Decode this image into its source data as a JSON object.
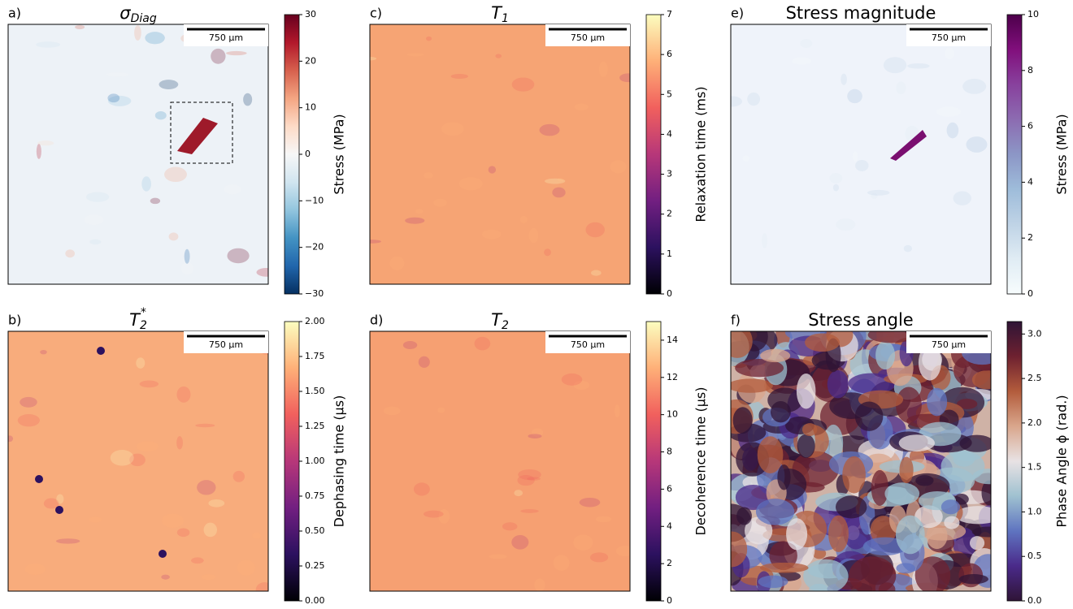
{
  "chart_data": [
    {
      "type": "heatmap",
      "panel_label": "a)",
      "title": "σ",
      "title_sub": "Diag",
      "scale_bar": "750 µm",
      "colorbar_label": "Stress (MPa)",
      "ylim": [
        -30,
        30
      ],
      "yticks": [
        {
          "value": -30,
          "label": "−30"
        },
        {
          "value": -20,
          "label": "−20"
        },
        {
          "value": -10,
          "label": "−10"
        },
        0,
        10,
        20,
        30
      ],
      "colormap": [
        "#053061",
        "#2166ac",
        "#4393c3",
        "#92c5de",
        "#d1e5f0",
        "#f7f7f7",
        "#fddbc7",
        "#f4a582",
        "#d6604d",
        "#b2182b",
        "#67001f"
      ],
      "image_color": "#edf2f7"
    },
    {
      "type": "heatmap",
      "panel_label": "b)",
      "title": "T",
      "title_sub": "2",
      "title_sup": "*",
      "scale_bar": "750 µm",
      "colorbar_label": "Dephasing time (µs)",
      "ylim": [
        0,
        2
      ],
      "yticks": [
        {
          "value": 0,
          "label": "0.00"
        },
        {
          "value": 0.25,
          "label": "0.25"
        },
        {
          "value": 0.5,
          "label": "0.50"
        },
        {
          "value": 0.75,
          "label": "0.75"
        },
        {
          "value": 1,
          "label": "1.00"
        },
        {
          "value": 1.25,
          "label": "1.25"
        },
        {
          "value": 1.5,
          "label": "1.50"
        },
        {
          "value": 1.75,
          "label": "1.75"
        },
        {
          "value": 2,
          "label": "2.00"
        }
      ],
      "colormap": [
        "#000004",
        "#2c115f",
        "#721f81",
        "#b73779",
        "#f1605d",
        "#feb078",
        "#fcfdbf"
      ],
      "image_color": "#f8ac7c"
    },
    {
      "type": "heatmap",
      "panel_label": "c)",
      "title": "T",
      "title_sub": "1",
      "scale_bar": "750 µm",
      "colorbar_label": "Relaxation time (ms)",
      "ylim": [
        0,
        7
      ],
      "yticks": [
        0,
        1,
        2,
        3,
        4,
        5,
        6,
        7
      ],
      "colormap": [
        "#000004",
        "#2c115f",
        "#721f81",
        "#b73779",
        "#f1605d",
        "#feb078",
        "#fcfdbf"
      ],
      "image_color": "#f6a474"
    },
    {
      "type": "heatmap",
      "panel_label": "d)",
      "title": "T",
      "title_sub": "2",
      "scale_bar": "750 µm",
      "colorbar_label": "Decoherence time (µs)",
      "ylim": [
        0,
        15
      ],
      "yticks": [
        0,
        2,
        4,
        6,
        8,
        10,
        12,
        14
      ],
      "colormap": [
        "#000004",
        "#2c115f",
        "#721f81",
        "#b73779",
        "#f1605d",
        "#feb078",
        "#fcfdbf"
      ],
      "image_color": "#f6a072"
    },
    {
      "type": "heatmap",
      "panel_label": "e)",
      "title": "Stress magnitude",
      "scale_bar": "750 µm",
      "colorbar_label": "Stress (MPa)",
      "ylim": [
        0,
        10
      ],
      "yticks": [
        0,
        2,
        4,
        6,
        8,
        10
      ],
      "colormap": [
        "#f7fcfd",
        "#e0ecf4",
        "#bfd3e6",
        "#9ebcda",
        "#8c96c6",
        "#8c6bb1",
        "#88419d",
        "#810f7c",
        "#4d004b"
      ],
      "image_color": "#eff3fa"
    },
    {
      "type": "heatmap",
      "panel_label": "f)",
      "title": "Stress angle",
      "scale_bar": "750 µm",
      "colorbar_label": "Phase Angle ϕ (rad.)",
      "ylim": [
        0,
        3.14
      ],
      "yticks": [
        {
          "value": 0,
          "label": "0.0"
        },
        {
          "value": 0.5,
          "label": "0.5"
        },
        {
          "value": 1,
          "label": "1.0"
        },
        {
          "value": 1.5,
          "label": "1.5"
        },
        {
          "value": 2,
          "label": "2.0"
        },
        {
          "value": 2.5,
          "label": "2.5"
        },
        {
          "value": 3,
          "label": "3.0"
        }
      ],
      "colormap": [
        "#2f1436",
        "#4a2a8a",
        "#5f74c0",
        "#9fc1d0",
        "#e8e2e4",
        "#d9a68c",
        "#b35c3c",
        "#6e2130",
        "#2f1436"
      ],
      "image_color": "#cfb2a6"
    }
  ]
}
